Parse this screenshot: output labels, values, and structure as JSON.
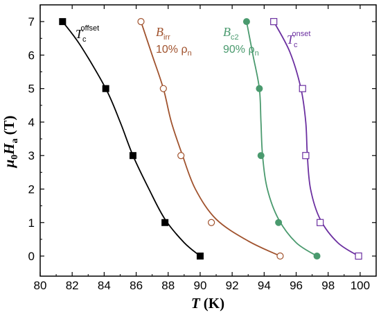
{
  "chart_data": {
    "type": "scatter",
    "xlabel": {
      "var": "T",
      "unit": "(K)"
    },
    "ylabel": {
      "var1": "μ",
      "sub1": "0",
      "var2": "H",
      "sub2": "a",
      "unit": "(T)"
    },
    "xlim": [
      80,
      101
    ],
    "ylim": [
      -0.6,
      7.5
    ],
    "xticks": [
      80,
      82,
      84,
      86,
      88,
      90,
      92,
      94,
      96,
      98,
      100
    ],
    "yticks": [
      0,
      1,
      2,
      3,
      4,
      5,
      6,
      7
    ],
    "grid": false,
    "series": [
      {
        "id": "tc-offset",
        "color": "#000000",
        "marker": "square-filled",
        "points": [
          [
            81.4,
            7.0
          ],
          [
            84.1,
            5.0
          ],
          [
            85.8,
            3.0
          ],
          [
            87.8,
            1.0
          ],
          [
            90.0,
            0.0
          ]
        ],
        "curve": [
          [
            81.4,
            7.0
          ],
          [
            82.5,
            6.3
          ],
          [
            84.1,
            5.0
          ],
          [
            85.0,
            4.0
          ],
          [
            85.8,
            3.0
          ],
          [
            86.8,
            2.0
          ],
          [
            87.8,
            1.1
          ],
          [
            89.0,
            0.4
          ],
          [
            90.0,
            0.0
          ]
        ],
        "label": {
          "sym": "T",
          "sub": "c",
          "sup": "offset",
          "extra": ""
        }
      },
      {
        "id": "b-irr",
        "color": "#a0522d",
        "marker": "circle-open",
        "points": [
          [
            86.3,
            7.0
          ],
          [
            87.7,
            5.0
          ],
          [
            88.8,
            3.0
          ],
          [
            90.7,
            1.0
          ],
          [
            95.0,
            0.0
          ]
        ],
        "curve": [
          [
            86.3,
            7.0
          ],
          [
            87.0,
            6.0
          ],
          [
            87.7,
            5.0
          ],
          [
            88.2,
            4.0
          ],
          [
            88.9,
            3.0
          ],
          [
            89.7,
            2.0
          ],
          [
            91.0,
            1.1
          ],
          [
            93.0,
            0.45
          ],
          [
            95.0,
            0.0
          ]
        ],
        "label": {
          "sym": "B",
          "sub": "irr",
          "sup": "",
          "extra": "10% ρ",
          "extra_sub": "n"
        }
      },
      {
        "id": "b-c2",
        "color": "#4a9a6e",
        "marker": "circle-filled",
        "points": [
          [
            92.9,
            7.0
          ],
          [
            93.7,
            5.0
          ],
          [
            93.8,
            3.0
          ],
          [
            94.9,
            1.0
          ],
          [
            97.3,
            0.0
          ]
        ],
        "curve": [
          [
            92.9,
            7.0
          ],
          [
            93.3,
            6.0
          ],
          [
            93.7,
            5.0
          ],
          [
            93.8,
            4.0
          ],
          [
            93.9,
            3.0
          ],
          [
            94.2,
            2.0
          ],
          [
            94.9,
            1.1
          ],
          [
            96.0,
            0.4
          ],
          [
            97.3,
            0.0
          ]
        ],
        "label": {
          "sym": "B",
          "sub": "c2",
          "sup": "",
          "extra": "90% ρ",
          "extra_sub": "n"
        }
      },
      {
        "id": "tc-onset",
        "color": "#6b2fa0",
        "marker": "square-open",
        "points": [
          [
            94.6,
            7.0
          ],
          [
            96.4,
            5.0
          ],
          [
            96.6,
            3.0
          ],
          [
            97.5,
            1.0
          ],
          [
            99.9,
            0.0
          ]
        ],
        "curve": [
          [
            94.6,
            7.0
          ],
          [
            95.6,
            6.1
          ],
          [
            96.3,
            5.0
          ],
          [
            96.6,
            4.0
          ],
          [
            96.7,
            3.0
          ],
          [
            96.9,
            2.0
          ],
          [
            97.5,
            1.1
          ],
          [
            98.6,
            0.4
          ],
          [
            99.9,
            0.0
          ]
        ],
        "label": {
          "sym": "T",
          "sub": "c",
          "sup": "onset",
          "extra": ""
        }
      }
    ]
  }
}
